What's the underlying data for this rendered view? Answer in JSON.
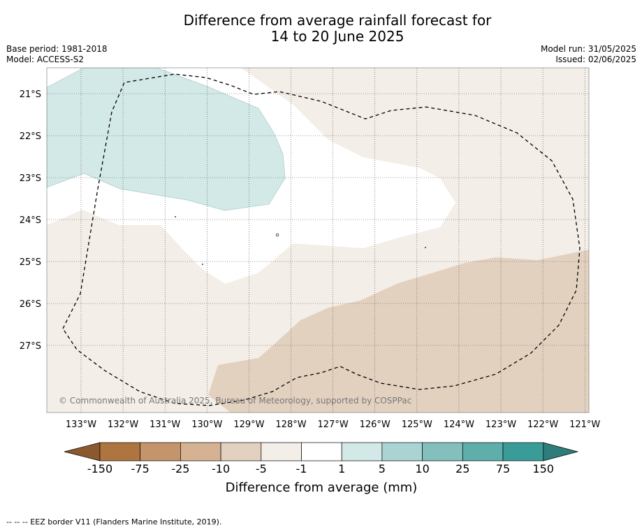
{
  "title": {
    "line1": "Difference from average rainfall forecast for",
    "line2": "14 to 20 June 2025"
  },
  "meta_left": {
    "base_period": "Base period: 1981-2018",
    "model": "Model: ACCESS-S2"
  },
  "meta_right": {
    "model_run": "Model run: 31/05/2025",
    "issued": "Issued: 02/06/2025"
  },
  "map": {
    "lon_labels": [
      "133°W",
      "132°W",
      "131°W",
      "130°W",
      "129°W",
      "128°W",
      "127°W",
      "126°W",
      "125°W",
      "124°W",
      "123°W",
      "122°W",
      "121°W"
    ],
    "lat_labels": [
      "21°S",
      "22°S",
      "23°S",
      "24°S",
      "25°S",
      "26°S",
      "27°S"
    ],
    "copyright": "© Commonwealth of Australia 2025, Bureau of Meteorology, supported by COSPPac"
  },
  "colorbar": {
    "title": "Difference from average (mm)",
    "tick_labels": [
      "-150",
      "-75",
      "-25",
      "-10",
      "-5",
      "-1",
      "1",
      "5",
      "10",
      "25",
      "75",
      "150"
    ],
    "colors": [
      "#ae7541",
      "#c4956a",
      "#d5b392",
      "#e3d1c0",
      "#f4eee8",
      "#ffffff",
      "#d3e9e8",
      "#aad4d3",
      "#83c0bd",
      "#5eaeab",
      "#3a9c98"
    ],
    "under_color": "#8a5a2e",
    "over_color": "#2e7d7a"
  },
  "footnote": "-- -- -- EEZ border V11 (Flanders Marine Institute, 2019)."
}
